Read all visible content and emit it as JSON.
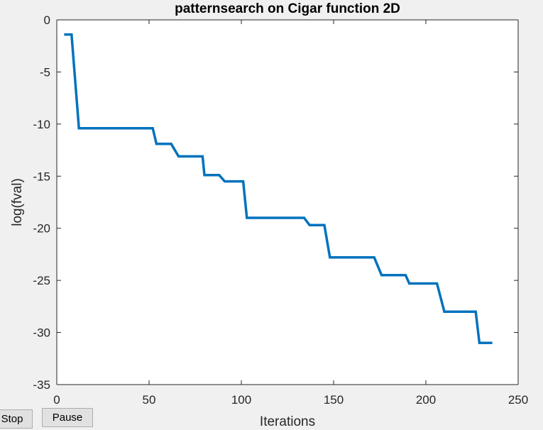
{
  "chart_data": {
    "type": "line",
    "title": "patternsearch on Cigar function 2D",
    "xlabel": "Iterations",
    "ylabel": "log(fval)",
    "xlim": [
      0,
      250
    ],
    "ylim": [
      -35,
      0
    ],
    "xticks": [
      "0",
      "50",
      "100",
      "150",
      "200",
      "250"
    ],
    "yticks": [
      "0",
      "-5",
      "-10",
      "-15",
      "-20",
      "-25",
      "-30",
      "-35"
    ],
    "grid": false,
    "line_color": "#0072bd",
    "x": [
      4,
      8,
      12,
      52,
      54,
      62,
      66,
      79,
      80,
      88,
      91,
      101,
      103,
      134,
      137,
      145,
      148,
      172,
      176,
      189,
      191,
      206,
      210,
      227,
      229,
      236
    ],
    "y": [
      -1.4,
      -1.4,
      -10.4,
      -10.4,
      -11.9,
      -11.9,
      -13.1,
      -13.1,
      -14.9,
      -14.9,
      -15.5,
      -15.5,
      -19.0,
      -19.0,
      -19.7,
      -19.7,
      -22.8,
      -22.8,
      -24.5,
      -24.5,
      -25.3,
      -25.3,
      -28.0,
      -28.0,
      -31.0,
      -31.0
    ]
  },
  "controls": {
    "stop_label": "Stop",
    "pause_label": "Pause"
  }
}
